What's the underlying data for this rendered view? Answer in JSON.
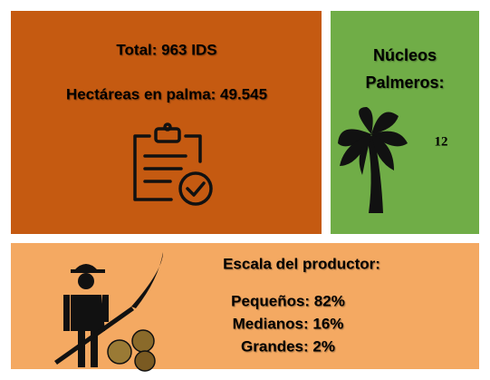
{
  "summary": {
    "total": "Total: 963 IDS",
    "hectares": "Hectáreas en palma: 49.545"
  },
  "nucleos": {
    "title_line1": "Núcleos",
    "title_line2": "Palmeros:",
    "count": "12"
  },
  "scale": {
    "title": "Escala del productor:",
    "items": [
      "Pequeños: 82%",
      "Medianos: 16%",
      "Grandes: 2%"
    ]
  }
}
